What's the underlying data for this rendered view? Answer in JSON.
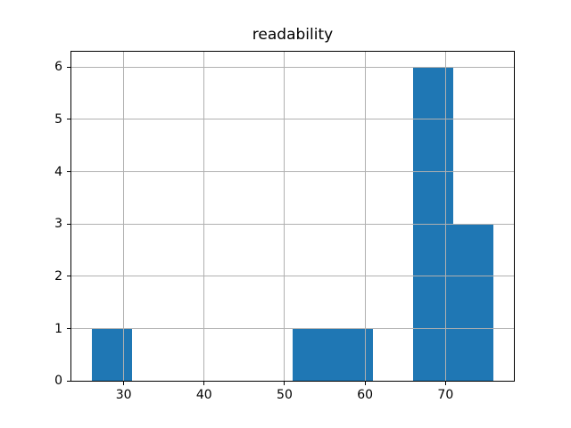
{
  "chart_data": {
    "type": "bar",
    "subtype": "histogram",
    "title": "readability",
    "xlabel": "",
    "ylabel": "",
    "bin_edges": [
      26,
      31,
      36,
      41,
      46,
      51,
      56,
      61,
      66,
      71,
      76
    ],
    "counts": [
      1,
      0,
      0,
      0,
      0,
      1,
      1,
      0,
      6,
      3
    ],
    "xlim": [
      23.5,
      78.5
    ],
    "ylim": [
      0,
      6.3
    ],
    "x_ticks": [
      30,
      40,
      50,
      60,
      70
    ],
    "y_ticks": [
      0,
      1,
      2,
      3,
      4,
      5,
      6
    ],
    "x_tick_labels": [
      "30",
      "40",
      "50",
      "60",
      "70"
    ],
    "y_tick_labels": [
      "0",
      "1",
      "2",
      "3",
      "4",
      "5",
      "6"
    ],
    "grid": true,
    "grid_above_bars": true,
    "legend": "none",
    "colors": {
      "bar": "#1f77b4",
      "grid": "#b0b0b0",
      "axis": "#000000",
      "background": "#ffffff",
      "text": "#000000"
    }
  }
}
